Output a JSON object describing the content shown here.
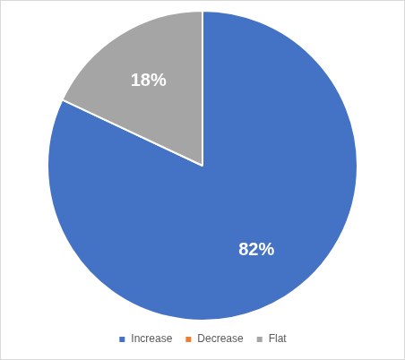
{
  "chart_data": {
    "type": "pie",
    "categories": [
      "Increase",
      "Decrease",
      "Flat"
    ],
    "values": [
      82,
      0,
      18
    ],
    "value_labels": [
      "82%",
      null,
      "18%"
    ],
    "colors": [
      "#4472c4",
      "#ed7d31",
      "#a5a5a5"
    ],
    "data_labels": true,
    "legend": "bottom"
  }
}
